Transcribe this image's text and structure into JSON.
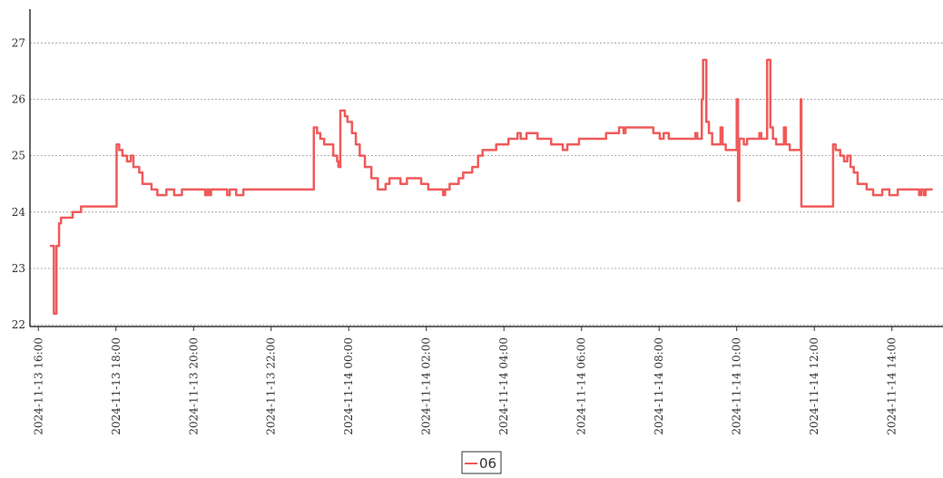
{
  "chart_data": {
    "type": "line",
    "step": "post",
    "xlim": [
      "2024-11-13 15:47",
      "2024-11-14 15:19"
    ],
    "xticks": [
      "2024-11-13 16:00",
      "2024-11-13 18:00",
      "2024-11-13 20:00",
      "2024-11-13 22:00",
      "2024-11-14 00:00",
      "2024-11-14 02:00",
      "2024-11-14 04:00",
      "2024-11-14 06:00",
      "2024-11-14 08:00",
      "2024-11-14 10:00",
      "2024-11-14 12:00",
      "2024-11-14 14:00"
    ],
    "ylim": [
      21.97,
      27.6
    ],
    "yticks": [
      22,
      23,
      24,
      25,
      26,
      27
    ],
    "grid": true,
    "legend": "bottom",
    "x": [
      "2024-11-13 16:18",
      "2024-11-13 16:24",
      "2024-11-13 16:28",
      "2024-11-13 16:32",
      "2024-11-13 16:35",
      "2024-11-13 16:53",
      "2024-11-13 17:06",
      "2024-11-13 18:01",
      "2024-11-13 18:05",
      "2024-11-13 18:10",
      "2024-11-13 18:17",
      "2024-11-13 18:23",
      "2024-11-13 18:27",
      "2024-11-13 18:36",
      "2024-11-13 18:41",
      "2024-11-13 18:55",
      "2024-11-13 19:04",
      "2024-11-13 19:18",
      "2024-11-13 19:30",
      "2024-11-13 19:42",
      "2024-11-13 20:18",
      "2024-11-13 20:21",
      "2024-11-13 20:24",
      "2024-11-13 20:27",
      "2024-11-13 20:52",
      "2024-11-13 20:56",
      "2024-11-13 21:06",
      "2024-11-13 21:17",
      "2024-11-13 23:06",
      "2024-11-13 23:11",
      "2024-11-13 23:16",
      "2024-11-13 23:22",
      "2024-11-13 23:36",
      "2024-11-13 23:42",
      "2024-11-13 23:44",
      "2024-11-13 23:47",
      "2024-11-13 23:54",
      "2024-11-13 23:58",
      "2024-11-14 00:05",
      "2024-11-14 00:11",
      "2024-11-14 00:17",
      "2024-11-14 00:25",
      "2024-11-14 00:35",
      "2024-11-14 00:45",
      "2024-11-14 00:57",
      "2024-11-14 01:03",
      "2024-11-14 01:20",
      "2024-11-14 01:30",
      "2024-11-14 01:52",
      "2024-11-14 02:03",
      "2024-11-14 02:26",
      "2024-11-14 02:29",
      "2024-11-14 02:36",
      "2024-11-14 02:50",
      "2024-11-14 02:57",
      "2024-11-14 03:11",
      "2024-11-14 03:20",
      "2024-11-14 03:27",
      "2024-11-14 03:48",
      "2024-11-14 04:07",
      "2024-11-14 04:21",
      "2024-11-14 04:26",
      "2024-11-14 04:35",
      "2024-11-14 04:52",
      "2024-11-14 05:13",
      "2024-11-14 05:31",
      "2024-11-14 05:38",
      "2024-11-14 05:56",
      "2024-11-14 06:38",
      "2024-11-14 06:58",
      "2024-11-14 07:05",
      "2024-11-14 07:08",
      "2024-11-14 07:51",
      "2024-11-14 08:01",
      "2024-11-14 08:07",
      "2024-11-14 08:15",
      "2024-11-14 08:56",
      "2024-11-14 08:59",
      "2024-11-14 09:06",
      "2024-11-14 09:08",
      "2024-11-14 09:13",
      "2024-11-14 09:17",
      "2024-11-14 09:22",
      "2024-11-14 09:35",
      "2024-11-14 09:38",
      "2024-11-14 09:43",
      "2024-11-14 10:00",
      "2024-11-14 10:02",
      "2024-11-14 10:04",
      "2024-11-14 10:11",
      "2024-11-14 10:16",
      "2024-11-14 10:35",
      "2024-11-14 10:38",
      "2024-11-14 10:47",
      "2024-11-14 10:52",
      "2024-11-14 10:56",
      "2024-11-14 11:01",
      "2024-11-14 11:13",
      "2024-11-14 11:16",
      "2024-11-14 11:22",
      "2024-11-14 11:39",
      "2024-11-14 11:40",
      "2024-11-14 12:29",
      "2024-11-14 12:33",
      "2024-11-14 12:40",
      "2024-11-14 12:46",
      "2024-11-14 12:51",
      "2024-11-14 12:56",
      "2024-11-14 13:01",
      "2024-11-14 13:07",
      "2024-11-14 13:21",
      "2024-11-14 13:31",
      "2024-11-14 13:45",
      "2024-11-14 13:56",
      "2024-11-14 14:09",
      "2024-11-14 14:42",
      "2024-11-14 14:45",
      "2024-11-14 14:49",
      "2024-11-14 14:52",
      "2024-11-14 15:03"
    ],
    "series": [
      {
        "name": "06",
        "color": "#f05a5a",
        "values": [
          23.4,
          22.2,
          23.4,
          23.8,
          23.9,
          24.0,
          24.1,
          25.2,
          25.1,
          25.0,
          24.9,
          25.0,
          24.8,
          24.7,
          24.5,
          24.4,
          24.3,
          24.4,
          24.3,
          24.4,
          24.3,
          24.4,
          24.3,
          24.4,
          24.3,
          24.4,
          24.3,
          24.4,
          25.5,
          25.4,
          25.3,
          25.2,
          25.0,
          24.9,
          24.8,
          25.8,
          25.7,
          25.6,
          25.4,
          25.2,
          25.0,
          24.8,
          24.6,
          24.4,
          24.5,
          24.6,
          24.5,
          24.6,
          24.5,
          24.4,
          24.3,
          24.4,
          24.5,
          24.6,
          24.7,
          24.8,
          25.0,
          25.1,
          25.2,
          25.3,
          25.4,
          25.3,
          25.4,
          25.3,
          25.2,
          25.1,
          25.2,
          25.3,
          25.4,
          25.5,
          25.4,
          25.5,
          25.4,
          25.3,
          25.4,
          25.3,
          25.4,
          25.3,
          26.0,
          26.7,
          25.6,
          25.4,
          25.2,
          25.5,
          25.2,
          25.1,
          26.0,
          24.2,
          25.3,
          25.2,
          25.3,
          25.4,
          25.3,
          26.7,
          25.5,
          25.3,
          25.2,
          25.5,
          25.2,
          25.1,
          26.0,
          24.1,
          25.2,
          25.1,
          25.0,
          24.9,
          25.0,
          24.8,
          24.7,
          24.5,
          24.4,
          24.3,
          24.4,
          24.3,
          24.4,
          24.3,
          24.4,
          24.3,
          24.4,
          24.4
        ]
      }
    ]
  }
}
